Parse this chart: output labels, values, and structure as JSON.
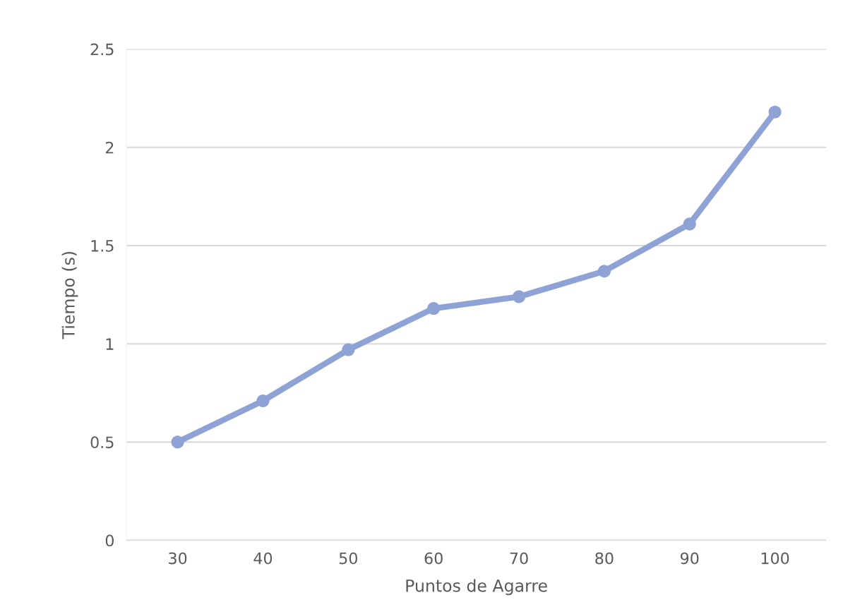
{
  "chart_data": {
    "type": "line",
    "xlabel": "Puntos de Agarre",
    "ylabel": "Tiempo (s)",
    "categories": [
      "30",
      "40",
      "50",
      "60",
      "70",
      "80",
      "90",
      "100"
    ],
    "series": [
      {
        "color": "#8fa2d6",
        "values": [
          0.5,
          0.71,
          0.97,
          1.18,
          1.24,
          1.37,
          1.61,
          2.18
        ]
      }
    ],
    "ylim": [
      0,
      2.5
    ],
    "yticks": [
      0,
      0.5,
      1,
      1.5,
      2,
      2.5
    ],
    "grid": "y",
    "marker": "circle",
    "line_style": "solid",
    "legend": false
  }
}
